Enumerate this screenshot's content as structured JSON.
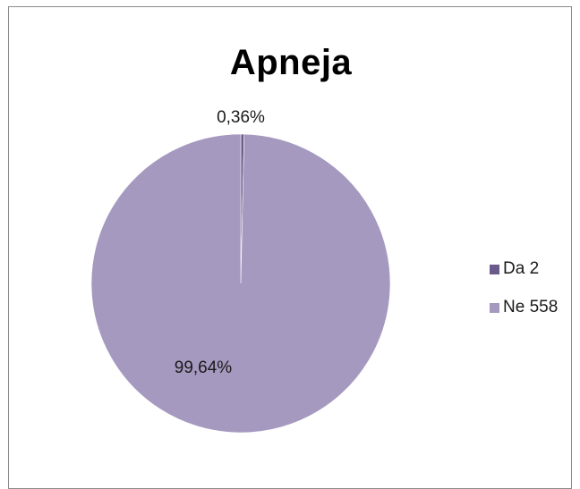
{
  "chart_data": {
    "type": "pie",
    "title": "Apneja",
    "slices": [
      {
        "label": "Da",
        "value": 2,
        "percent_label": "0,36%",
        "color": "#6b5a8c"
      },
      {
        "label": "Ne",
        "value": 558,
        "percent_label": "99,64%",
        "color": "#a699bf"
      }
    ],
    "legend": {
      "placement": "right",
      "entries": [
        "Da 2",
        "Ne 558"
      ]
    }
  }
}
